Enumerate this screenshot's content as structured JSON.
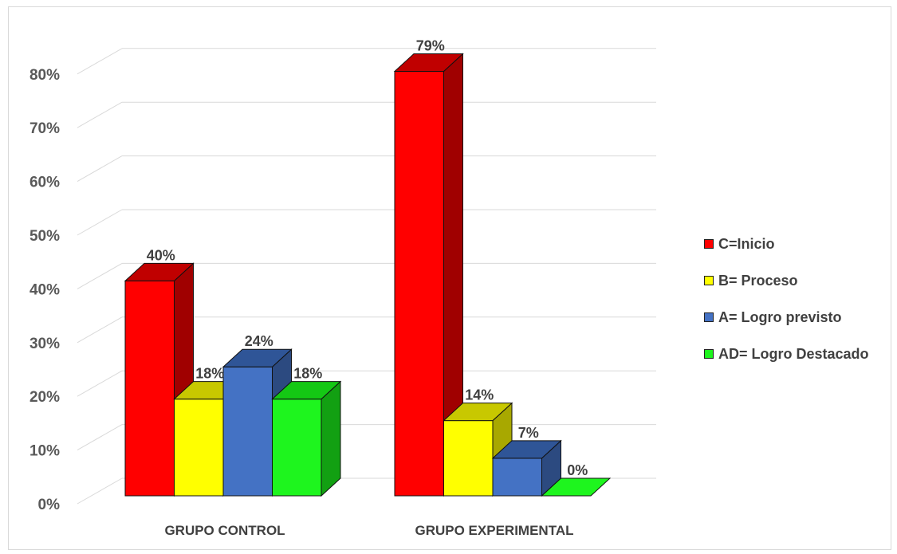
{
  "chart_data": {
    "type": "bar",
    "three_d": true,
    "categories": [
      "GRUPO CONTROL",
      "GRUPO EXPERIMENTAL"
    ],
    "series": [
      {
        "name": "C=Inicio",
        "values": [
          40,
          79
        ],
        "labels": [
          "40%",
          "79%"
        ],
        "color": "#ff0000",
        "side": "#a00000",
        "top": "#c00000"
      },
      {
        "name": "B= Proceso",
        "values": [
          18,
          14
        ],
        "labels": [
          "18%",
          "14%"
        ],
        "color": "#ffff00",
        "side": "#a8a800",
        "top": "#c8c800"
      },
      {
        "name": "A= Logro previsto",
        "values": [
          24,
          7
        ],
        "labels": [
          "24%",
          "7%"
        ],
        "color": "#4472c4",
        "side": "#2c4a80",
        "top": "#2f5597"
      },
      {
        "name": "AD= Logro Destacado",
        "values": [
          18,
          0
        ],
        "labels": [
          "18%",
          "0%"
        ],
        "color": "#1ef51e",
        "side": "#12a012",
        "top": "#14c814"
      }
    ],
    "yticks": [
      "0%",
      "10%",
      "20%",
      "30%",
      "40%",
      "50%",
      "60%",
      "70%",
      "80%"
    ],
    "ylim": [
      0,
      80
    ],
    "grid": true,
    "legend_position": "right"
  }
}
